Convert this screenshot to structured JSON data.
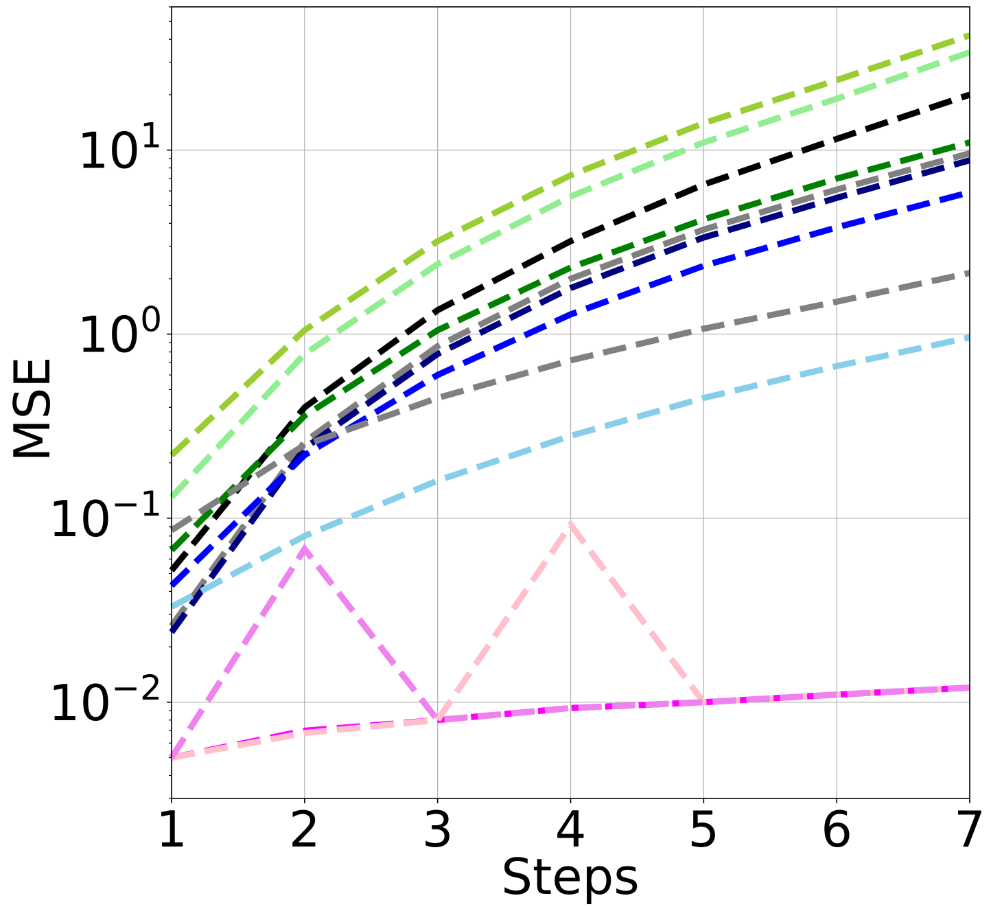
{
  "chart_data": {
    "type": "line",
    "title": "",
    "xlabel": "Steps",
    "ylabel": "MSE",
    "yscale": "log",
    "xlim": [
      1,
      7
    ],
    "ylim": [
      0.003,
      60
    ],
    "grid": true,
    "x": [
      1,
      2,
      3,
      4,
      5,
      6,
      7
    ],
    "x_ticks": [
      "1",
      "2",
      "3",
      "4",
      "5",
      "6",
      "7"
    ],
    "y_ticks": [
      {
        "value": 0.01,
        "base": "10",
        "exp": "−2"
      },
      {
        "value": 0.1,
        "base": "10",
        "exp": "−1"
      },
      {
        "value": 1,
        "base": "10",
        "exp": "0"
      },
      {
        "value": 10,
        "base": "10",
        "exp": "1"
      }
    ],
    "series": [
      {
        "color": "#9acd32",
        "values": [
          0.22,
          1.05,
          3.2,
          7.3,
          14.0,
          24.0,
          42.0
        ]
      },
      {
        "color": "#90ee90",
        "values": [
          0.13,
          0.78,
          2.4,
          5.6,
          11.0,
          19.0,
          34.0
        ]
      },
      {
        "color": "#000000",
        "values": [
          0.052,
          0.4,
          1.35,
          3.2,
          6.5,
          11.5,
          20.0
        ]
      },
      {
        "color": "#008000",
        "values": [
          0.067,
          0.36,
          1.05,
          2.3,
          4.2,
          7.0,
          11.0
        ]
      },
      {
        "color": "#808080",
        "values": [
          0.026,
          0.26,
          0.86,
          2.0,
          3.7,
          6.1,
          9.6
        ]
      },
      {
        "color": "#000080",
        "values": [
          0.024,
          0.24,
          0.78,
          1.78,
          3.35,
          5.5,
          8.8
        ]
      },
      {
        "color": "#0000ff",
        "values": [
          0.043,
          0.22,
          0.6,
          1.28,
          2.35,
          3.8,
          5.9
        ]
      },
      {
        "color": "#808080",
        "values": [
          0.086,
          0.25,
          0.45,
          0.72,
          1.07,
          1.5,
          2.15
        ]
      },
      {
        "color": "#87ceeb",
        "values": [
          0.033,
          0.08,
          0.16,
          0.28,
          0.45,
          0.67,
          0.96
        ]
      },
      {
        "color": "#ff00ff",
        "values": [
          0.005,
          0.007,
          0.008,
          0.0093,
          0.01,
          0.011,
          0.012
        ],
        "thin": true
      },
      {
        "color": "#ffc0cb",
        "values": [
          0.005,
          0.0068,
          0.008,
          0.092,
          0.01,
          0.011,
          0.012
        ]
      },
      {
        "color": "#ee82ee",
        "values": [
          0.005,
          0.068,
          0.008,
          0.0093,
          0.01,
          0.011,
          0.012
        ]
      }
    ]
  }
}
